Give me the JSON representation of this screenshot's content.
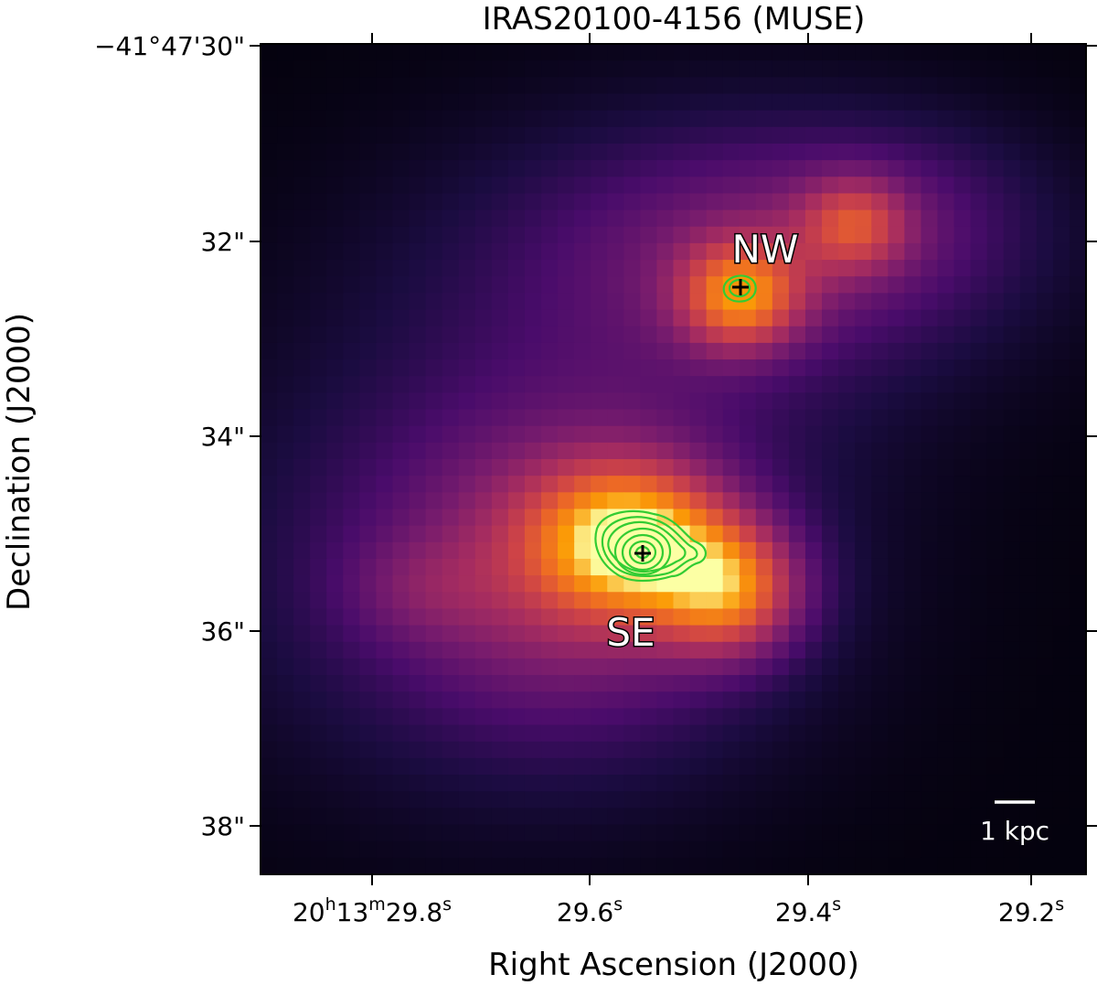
{
  "title": "IRAS20100-4156 (MUSE)",
  "xlabel": "Right Ascension (J2000)",
  "ylabel": "Declination (J2000)",
  "dec_ticks": [
    "−41°47'30\"",
    "32\"",
    "34\"",
    "36\"",
    "38\""
  ],
  "ra_ticks": [
    {
      "main": "20",
      "h": "h",
      "m1": "13",
      "m": "m",
      "s1": "29.8",
      "s": "s"
    },
    {
      "s1": "29.6",
      "s": "s"
    },
    {
      "s1": "29.4",
      "s": "s"
    },
    {
      "s1": "29.2",
      "s": "s"
    }
  ],
  "labels": {
    "nw": "NW",
    "se": "SE"
  },
  "scalebar": {
    "label": "1 kpc"
  },
  "colors": {
    "contour": "#33cc33",
    "marker": "#000000",
    "text_outline": "#000000",
    "text_fill": "#ffffff"
  },
  "image": {
    "colormap": "inferno",
    "band": "MUSE"
  }
}
